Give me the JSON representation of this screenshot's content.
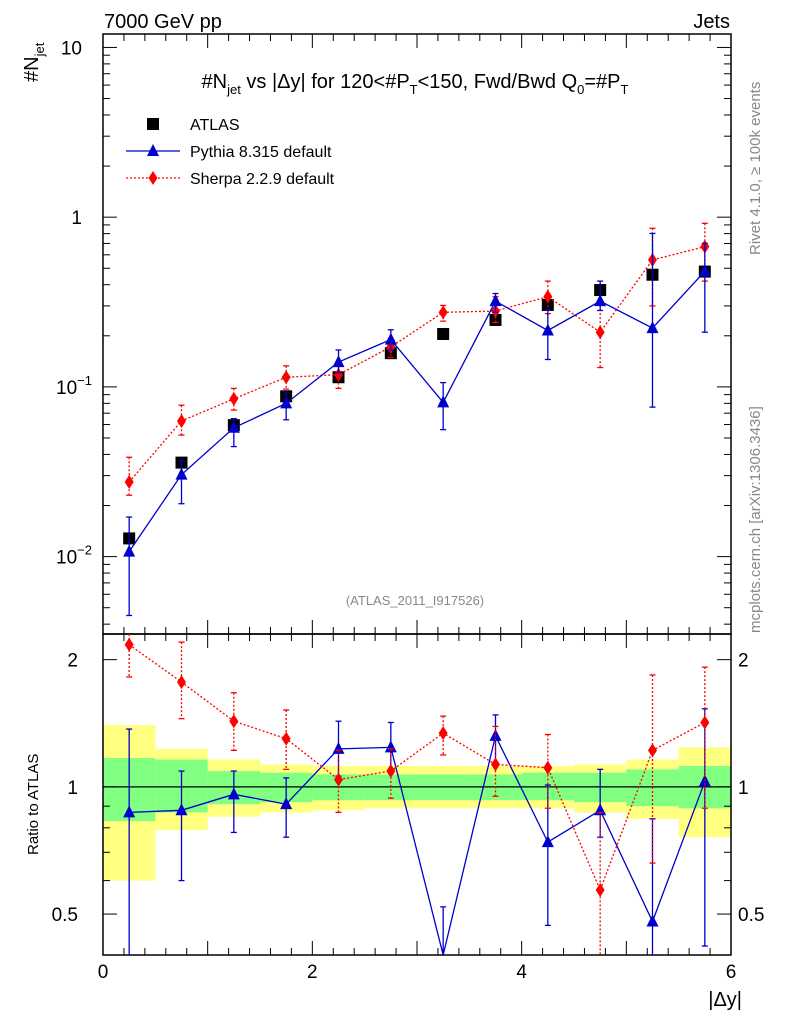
{
  "header": {
    "left": "7000 GeV pp",
    "right": "Jets"
  },
  "side_labels": {
    "rivet": "Rivet 4.1.0, ≥ 100k events",
    "mcplots": "mcplots.cern.ch [arXiv:1306.3436]"
  },
  "reference_label": "(ATLAS_2011_I917526)",
  "title": {
    "main": "#N",
    "sub": "jet",
    "rest": " vs |Δy| for 120<#P",
    "rest_sub": "T",
    "rest2": "<150, Fwd/Bwd Q",
    "q_sub": "0",
    "rest3": "=#P",
    "end_sub": "T"
  },
  "axes": {
    "ylabel_main": "#N",
    "ylabel_sub": "jet",
    "ylabel_ratio": "Ratio to ATLAS",
    "xlabel": "|Δy|",
    "main_ticks": [
      {
        "value": 0.01,
        "base": "10",
        "exp": "−2"
      },
      {
        "value": 0.1,
        "base": "10",
        "exp": "−1"
      },
      {
        "value": 1,
        "base": "1",
        "exp": ""
      },
      {
        "value": 10,
        "base": "10",
        "exp": ""
      }
    ],
    "ratio_ticks": [
      {
        "value": 0.5,
        "label": "0.5"
      },
      {
        "value": 1,
        "label": "1"
      },
      {
        "value": 2,
        "label": "2"
      }
    ],
    "x_ticks": [
      {
        "value": 0,
        "label": "0"
      },
      {
        "value": 2,
        "label": "2"
      },
      {
        "value": 4,
        "label": "4"
      },
      {
        "value": 6,
        "label": "6"
      }
    ]
  },
  "chart_data": [
    {
      "type": "scatter",
      "panel": "main",
      "yscale": "log",
      "xlim": [
        0,
        6
      ],
      "ylim": [
        0.0035,
        12
      ],
      "x": [
        0.25,
        0.75,
        1.25,
        1.75,
        2.25,
        2.75,
        3.25,
        3.75,
        4.25,
        4.75,
        5.25,
        5.75
      ],
      "series": [
        {
          "name": "ATLAS",
          "color": "#000000",
          "marker": "square",
          "values": [
            0.0128,
            0.0358,
            0.0595,
            0.088,
            0.114,
            0.158,
            0.205,
            0.248,
            0.304,
            0.372,
            0.458,
            0.478
          ]
        },
        {
          "name": "Pythia 8.315 default",
          "color": "#0000cc",
          "marker": "triangle",
          "line": "solid",
          "values": [
            0.0107,
            0.0304,
            0.0574,
            0.08,
            0.14,
            0.19,
            0.081,
            0.32,
            0.215,
            0.32,
            0.222,
            0.48
          ],
          "err_low": [
            0.0062,
            0.0099,
            0.0129,
            0.016,
            0.019,
            0.025,
            0.025,
            0.045,
            0.07,
            0.038,
            0.146,
            0.27
          ],
          "err_high": [
            0.0064,
            0.0065,
            0.0076,
            0.012,
            0.025,
            0.027,
            0.025,
            0.035,
            0.07,
            0.1,
            0.58,
            0.22
          ]
        },
        {
          "name": "Sherpa 2.2.9 default",
          "color": "#ff0000",
          "marker": "diamond",
          "line": "dotted",
          "values": [
            0.0275,
            0.063,
            0.085,
            0.114,
            0.118,
            0.172,
            0.275,
            0.28,
            0.34,
            0.21,
            0.56,
            0.67
          ],
          "err_low": [
            0.0045,
            0.011,
            0.012,
            0.017,
            0.02,
            0.023,
            0.031,
            0.04,
            0.07,
            0.08,
            0.26,
            0.25
          ],
          "err_high": [
            0.011,
            0.015,
            0.013,
            0.019,
            0.021,
            0.021,
            0.027,
            0.06,
            0.08,
            0.11,
            0.3,
            0.25
          ]
        }
      ]
    },
    {
      "type": "scatter",
      "panel": "ratio",
      "yscale": "log",
      "xlim": [
        0,
        6
      ],
      "ylim": [
        0.4,
        2.3
      ],
      "ylabel": "Ratio to ATLAS",
      "xlabel": "|Δy|",
      "reference_line": 1,
      "bands": {
        "bins": [
          [
            0,
            0.5
          ],
          [
            0.5,
            1
          ],
          [
            1,
            1.5
          ],
          [
            1.5,
            2
          ],
          [
            2,
            2.5
          ],
          [
            2.5,
            3
          ],
          [
            3,
            3.5
          ],
          [
            3.5,
            4
          ],
          [
            4,
            4.5
          ],
          [
            4.5,
            5
          ],
          [
            5,
            5.5
          ],
          [
            5.5,
            6
          ]
        ],
        "inner_low": [
          0.83,
          0.87,
          0.91,
          0.92,
          0.93,
          0.93,
          0.93,
          0.93,
          0.93,
          0.92,
          0.9,
          0.89
        ],
        "inner_high": [
          1.17,
          1.16,
          1.09,
          1.08,
          1.07,
          1.07,
          1.07,
          1.07,
          1.08,
          1.08,
          1.1,
          1.12
        ],
        "outer_low": [
          0.6,
          0.79,
          0.85,
          0.87,
          0.88,
          0.89,
          0.89,
          0.89,
          0.89,
          0.87,
          0.84,
          0.76
        ],
        "outer_high": [
          1.4,
          1.23,
          1.16,
          1.13,
          1.12,
          1.12,
          1.12,
          1.12,
          1.12,
          1.13,
          1.16,
          1.24
        ],
        "inner_color": "#80ff80",
        "outer_color": "#ffff80"
      },
      "x": [
        0.25,
        0.75,
        1.25,
        1.75,
        2.25,
        2.75,
        3.25,
        3.75,
        4.25,
        4.75,
        5.25,
        5.75
      ],
      "series": [
        {
          "name": "Pythia 8.315 default",
          "color": "#0000cc",
          "values": [
            0.87,
            0.88,
            0.96,
            0.91,
            1.23,
            1.24,
            0.39,
            1.32,
            0.74,
            0.88,
            0.48,
            1.03
          ],
          "err_low": [
            0.52,
            0.28,
            0.18,
            0.15,
            0.17,
            0.16,
            0.12,
            0.19,
            0.27,
            0.12,
            0.33,
            0.61
          ],
          "err_high": [
            0.5,
            0.21,
            0.13,
            0.14,
            0.2,
            0.18,
            0.13,
            0.16,
            0.27,
            0.22,
            0.36,
            0.5
          ]
        },
        {
          "name": "Sherpa 2.2.9 default",
          "color": "#ff0000",
          "values": [
            2.17,
            1.77,
            1.43,
            1.3,
            1.04,
            1.09,
            1.34,
            1.13,
            1.11,
            0.57,
            1.22,
            1.42
          ],
          "err_low": [
            0.35,
            0.32,
            0.21,
            0.2,
            0.17,
            0.15,
            0.15,
            0.18,
            0.22,
            0.22,
            0.56,
            0.53
          ],
          "err_high": [
            0.86,
            0.43,
            0.24,
            0.22,
            0.18,
            0.14,
            0.13,
            0.26,
            0.22,
            0.3,
            0.62,
            0.5
          ]
        }
      ]
    }
  ]
}
